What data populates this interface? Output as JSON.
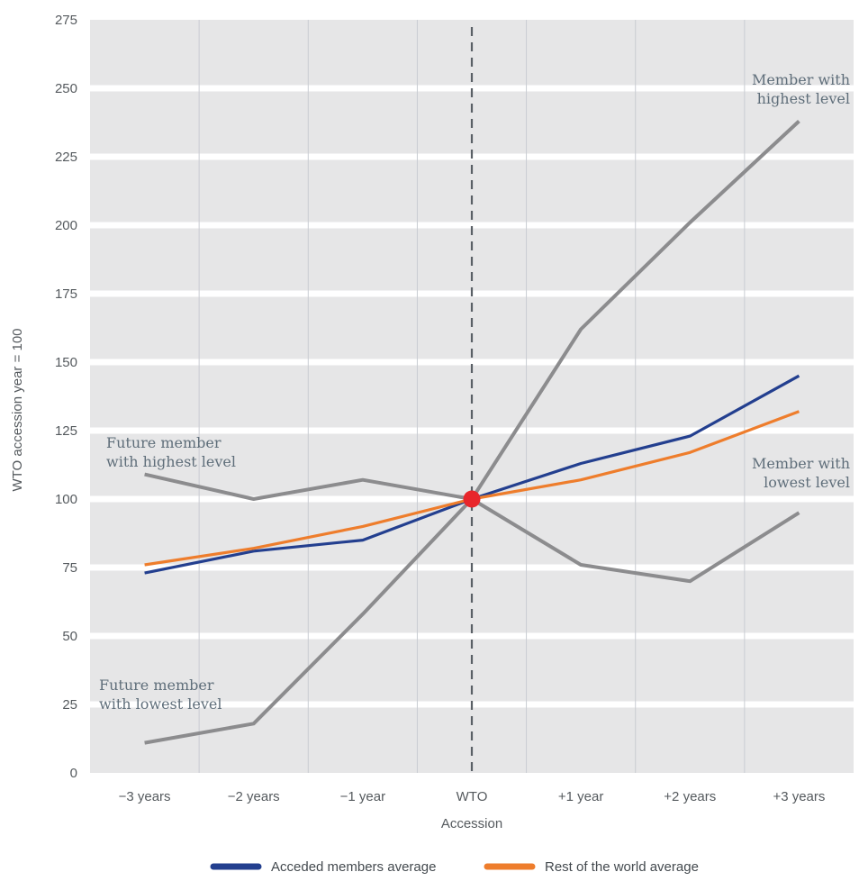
{
  "chart_data": {
    "type": "line",
    "categories": [
      "−3 years",
      "−2 years",
      "−1 year",
      "WTO",
      "+1 year",
      "+2 years",
      "+3 years"
    ],
    "xlabel": "Accession",
    "ylabel": "WTO accession year = 100",
    "ylim": [
      0,
      275
    ],
    "yticks": [
      0,
      25,
      50,
      75,
      100,
      125,
      150,
      175,
      200,
      225,
      250,
      275
    ],
    "grid": "horizontal bands",
    "reference_line": {
      "category": "WTO",
      "style": "dashed"
    },
    "marker": {
      "category": "WTO",
      "value": 100,
      "color": "#e8262b"
    },
    "series": [
      {
        "name": "Acceded members average",
        "color": "#233f8f",
        "in_legend": true,
        "values": [
          73,
          81,
          85,
          100,
          113,
          123,
          145
        ]
      },
      {
        "name": "Rest of the world average",
        "color": "#ee7d2c",
        "in_legend": true,
        "values": [
          76,
          82,
          90,
          100,
          107,
          117,
          132
        ]
      },
      {
        "name": "Member with highest level",
        "color": "#8c8c8e",
        "in_legend": false,
        "values": [
          null,
          null,
          null,
          100,
          162,
          201,
          238
        ]
      },
      {
        "name": "Member with lowest level",
        "color": "#8c8c8e",
        "in_legend": false,
        "values": [
          null,
          null,
          null,
          100,
          76,
          70,
          95
        ]
      },
      {
        "name": "Future member with highest level",
        "color": "#8c8c8e",
        "in_legend": false,
        "values": [
          109,
          100,
          107,
          100,
          null,
          null,
          null
        ]
      },
      {
        "name": "Future member with lowest level",
        "color": "#8c8c8e",
        "in_legend": false,
        "values": [
          11,
          18,
          58,
          100,
          null,
          null,
          null
        ]
      }
    ],
    "annotations": [
      {
        "lines": [
          "Member with",
          "highest level"
        ],
        "anchor": "end"
      },
      {
        "lines": [
          "Member with",
          "lowest level"
        ],
        "anchor": "end"
      },
      {
        "lines": [
          "Future member",
          "with highest level"
        ],
        "anchor": "start"
      },
      {
        "lines": [
          "Future member",
          "with lowest level"
        ],
        "anchor": "start"
      }
    ],
    "legend": {
      "placement": "bottom"
    }
  }
}
